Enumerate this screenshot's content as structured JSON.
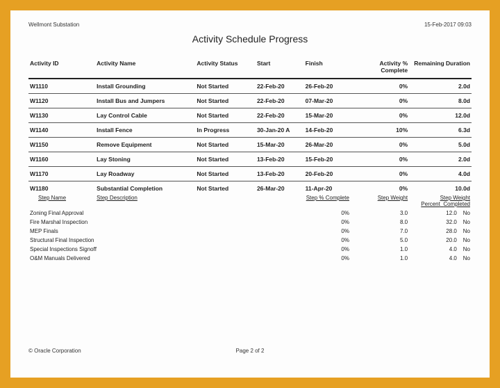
{
  "header": {
    "project": "Wellmont Substation",
    "datetime": "15-Feb-2017 09:03",
    "title": "Activity Schedule Progress"
  },
  "columns": {
    "id": "Activity ID",
    "name": "Activity Name",
    "status": "Activity Status",
    "start": "Start",
    "finish": "Finish",
    "pct": "Activity % Complete",
    "rem": "Remaining Duration"
  },
  "rows": [
    {
      "id": "W1110",
      "name": "Install Grounding",
      "status": "Not Started",
      "start": "22-Feb-20",
      "finish": "26-Feb-20",
      "pct": "0%",
      "rem": "2.0d"
    },
    {
      "id": "W1120",
      "name": "Install Bus and Jumpers",
      "status": "Not Started",
      "start": "22-Feb-20",
      "finish": "07-Mar-20",
      "pct": "0%",
      "rem": "8.0d"
    },
    {
      "id": "W1130",
      "name": "Lay Control Cable",
      "status": "Not Started",
      "start": "22-Feb-20",
      "finish": "15-Mar-20",
      "pct": "0%",
      "rem": "12.0d"
    },
    {
      "id": "W1140",
      "name": "Install Fence",
      "status": "In Progress",
      "start": "30-Jan-20 A",
      "finish": "14-Feb-20",
      "pct": "10%",
      "rem": "6.3d"
    },
    {
      "id": "W1150",
      "name": "Remove Equipment",
      "status": "Not Started",
      "start": "15-Mar-20",
      "finish": "26-Mar-20",
      "pct": "0%",
      "rem": "5.0d"
    },
    {
      "id": "W1160",
      "name": "Lay Stoning",
      "status": "Not Started",
      "start": "13-Feb-20",
      "finish": "15-Feb-20",
      "pct": "0%",
      "rem": "2.0d"
    },
    {
      "id": "W1170",
      "name": "Lay Roadway",
      "status": "Not Started",
      "start": "13-Feb-20",
      "finish": "20-Feb-20",
      "pct": "0%",
      "rem": "4.0d"
    },
    {
      "id": "W1180",
      "name": "Substantial Completion",
      "status": "Not Started",
      "start": "26-Mar-20",
      "finish": "11-Apr-20",
      "pct": "0%",
      "rem": "10.0d"
    }
  ],
  "steps_header": {
    "name": "Step Name",
    "desc": "Step Description",
    "pct": "Step % Complete",
    "weight": "Step Weight",
    "weight_pct": "Step Weight Percent",
    "completed": "Completed"
  },
  "steps": [
    {
      "name": "Zoning Final Approval",
      "pct": "0%",
      "weight": "3.0",
      "weight_pct": "12.0",
      "completed": "No"
    },
    {
      "name": "Fire Marshal Inspection",
      "pct": "0%",
      "weight": "8.0",
      "weight_pct": "32.0",
      "completed": "No"
    },
    {
      "name": "MEP Finals",
      "pct": "0%",
      "weight": "7.0",
      "weight_pct": "28.0",
      "completed": "No"
    },
    {
      "name": "Structural Final Inspection",
      "pct": "0%",
      "weight": "5.0",
      "weight_pct": "20.0",
      "completed": "No"
    },
    {
      "name": "Special Inspections Signoff",
      "pct": "0%",
      "weight": "1.0",
      "weight_pct": "4.0",
      "completed": "No"
    },
    {
      "name": "O&M Manuals Delivered",
      "pct": "0%",
      "weight": "1.0",
      "weight_pct": "4.0",
      "completed": "No"
    }
  ],
  "footer": {
    "copyright": "© Oracle Corporation",
    "page": "Page 2 of 2"
  }
}
